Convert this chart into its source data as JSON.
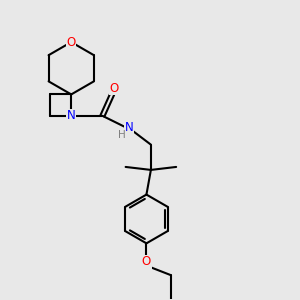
{
  "background_color": "#e8e8e8",
  "bond_color": "#000000",
  "atom_colors": {
    "O": "#ff0000",
    "N": "#0000ff",
    "H": "#7f7f7f",
    "C": "#000000"
  },
  "figsize": [
    3.0,
    3.0
  ],
  "dpi": 100
}
